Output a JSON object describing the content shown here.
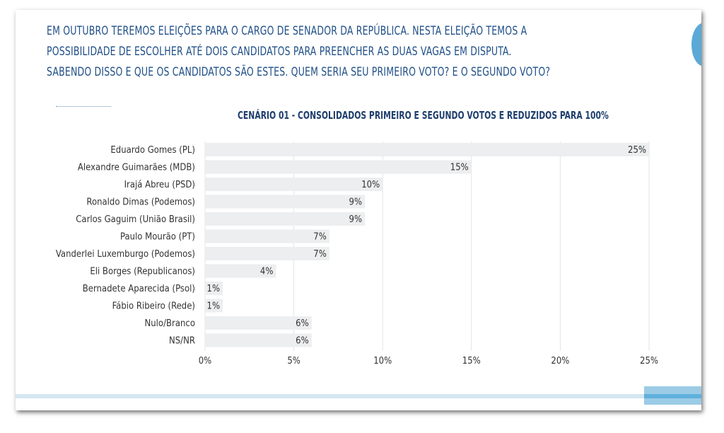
{
  "question": {
    "lines": [
      "EM OUTUBRO TEREMOS ELEIÇÕES PARA O CARGO DE SENADOR DA REPÚBLICA. NESTA ELEIÇÃO TEMOS A",
      "POSSIBILIDADE DE ESCOLHER ATÉ DOIS CANDIDATOS PARA PREENCHER AS DUAS VAGAS EM DISPUTA.",
      "SABENDO DISSO E QUE OS CANDIDATOS SÃO ESTES. QUEM SERIA SEU PRIMEIRO VOTO? E O SEGUNDO VOTO?"
    ]
  },
  "colors": {
    "question_text": "#1f4f87",
    "title_text": "#1f3f6e",
    "bar": "#eceeef",
    "grid": "#e2e4e6",
    "label_text": "#333333",
    "accent": "#5aa9d6"
  },
  "chart_data": {
    "type": "bar",
    "orientation": "horizontal",
    "title": "CENÁRIO 01 - CONSOLIDADOS PRIMEIRO E SEGUNDO VOTOS E REDUZIDOS PARA 100%",
    "categories": [
      "Eduardo Gomes (PL)",
      "Alexandre Guimarães (MDB)",
      "Irajá Abreu (PSD)",
      "Ronaldo Dimas (Podemos)",
      "Carlos Gaguim (União Brasil)",
      "Paulo Mourão (PT)",
      "Vanderlei Luxemburgo (Podemos)",
      "Eli Borges (Republicanos)",
      "Bernadete Aparecida (Psol)",
      "Fábio Ribeiro (Rede)",
      "Nulo/Branco",
      "NS/NR"
    ],
    "values": [
      25,
      15,
      10,
      9,
      9,
      7,
      7,
      4,
      1,
      1,
      6,
      6
    ],
    "value_labels": [
      "25%",
      "15%",
      "10%",
      "9%",
      "9%",
      "7%",
      "7%",
      "4%",
      "1%",
      "1%",
      "6%",
      "6%"
    ],
    "xlim": [
      0,
      25
    ],
    "xticks": [
      0,
      5,
      10,
      15,
      20,
      25
    ],
    "xtick_labels": [
      "0%",
      "5%",
      "10%",
      "15%",
      "20%",
      "25%"
    ],
    "grid": true,
    "legend": "none"
  }
}
